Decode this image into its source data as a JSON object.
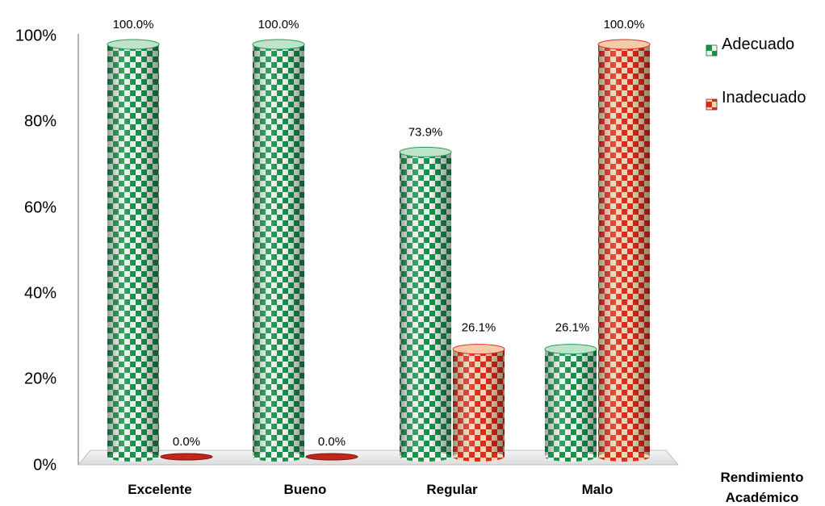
{
  "chart_data": {
    "type": "bar",
    "title": "",
    "xlabel": "Rendimiento Académico",
    "ylabel": "",
    "categories": [
      "Excelente",
      "Bueno",
      "Regular",
      "Malo"
    ],
    "series": [
      {
        "name": "Adecuado",
        "values": [
          100.0,
          100.0,
          73.9,
          26.1
        ],
        "color": "#1e9c55",
        "labels": [
          "100.0%",
          "100.0%",
          "73.9%",
          "26.1%"
        ]
      },
      {
        "name": "Inadecuado",
        "values": [
          0.0,
          0.0,
          26.1,
          100.0
        ],
        "color": "#e02a1c",
        "labels": [
          "0.0%",
          "0.0%",
          "26.1%",
          "100.0%"
        ]
      }
    ],
    "ylim": [
      0,
      100
    ],
    "yticks": [
      "0%",
      "20%",
      "40%",
      "60%",
      "80%",
      "100%"
    ],
    "grid": false,
    "legend": "right"
  }
}
